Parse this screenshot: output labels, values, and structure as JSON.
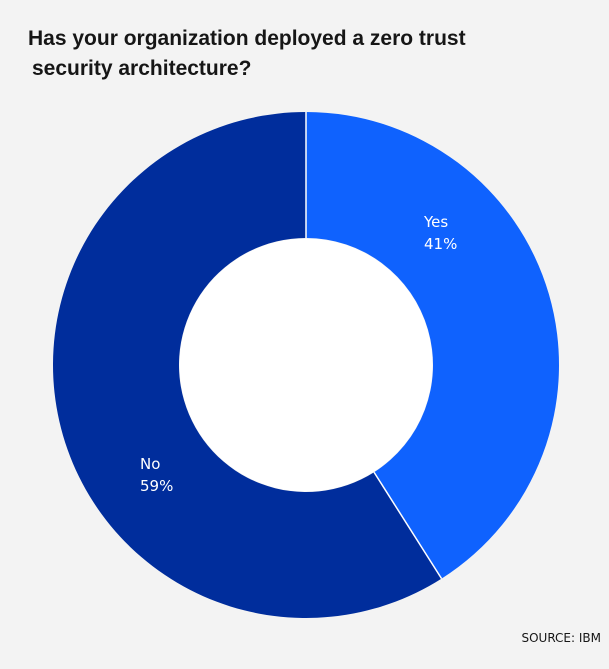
{
  "chart_data": {
    "type": "pie",
    "title_line1": "Has your organization deployed a zero trust",
    "title_line2": "security architecture?",
    "donut": true,
    "categories": [
      "Yes",
      "No"
    ],
    "values": [
      41,
      59
    ],
    "value_labels": [
      "41%",
      "59%"
    ],
    "colors": [
      "#0f62fe",
      "#002d9c"
    ],
    "start_angle": "12 o'clock",
    "direction": "clockwise",
    "source": "SOURCE: IBM"
  }
}
